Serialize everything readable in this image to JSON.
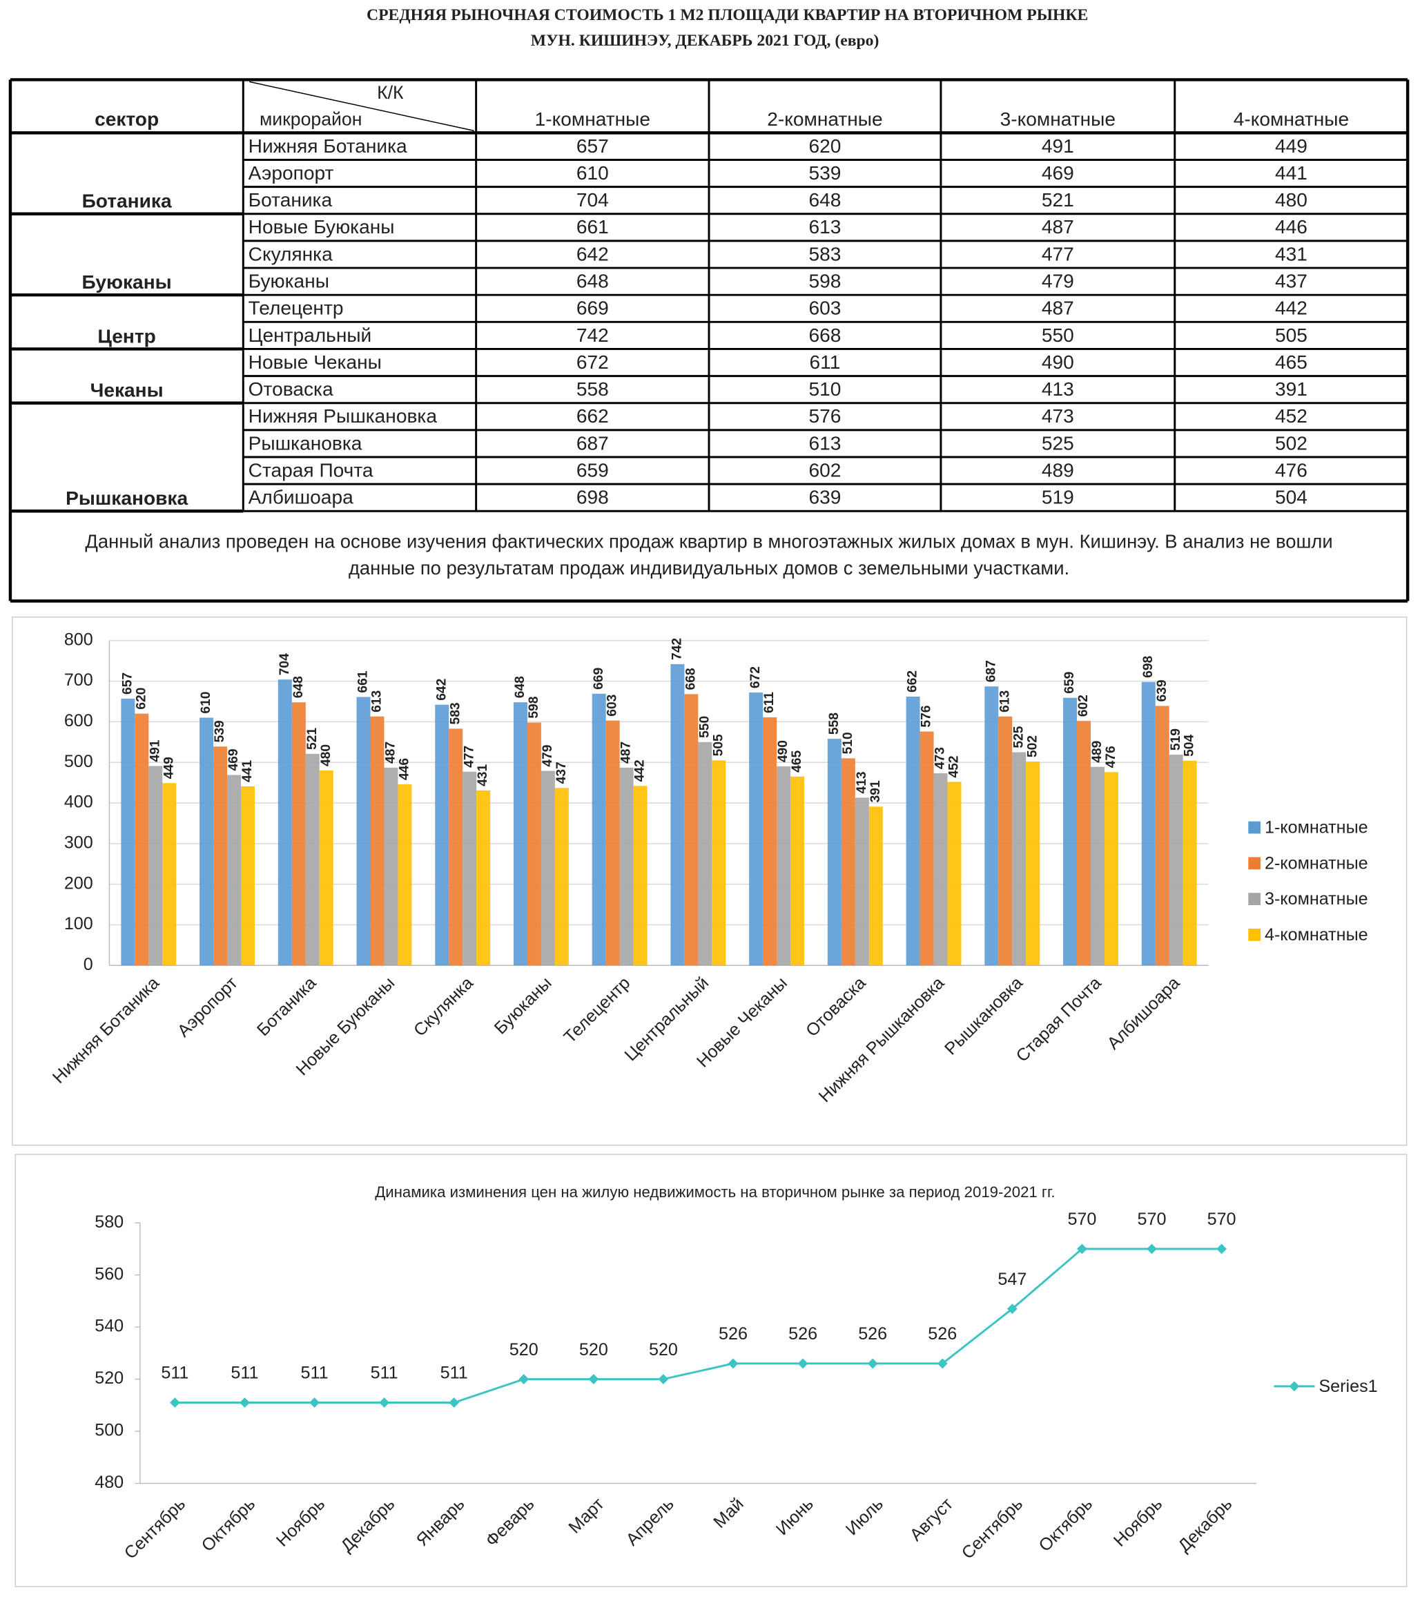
{
  "header": {
    "title_lines": [
      "СРЕДНЯЯ  РЫНОЧНАЯ  СТОИМОСТЬ  1 М2  ПЛОЩАДИ  КВАРТИР НА ВТОРИЧНОМ РЫНКЕ",
      "МУН.  КИШИНЭУ, ДЕКАБРЬ 2021 ГОД, (евро)"
    ]
  },
  "table": {
    "header": [
      "сектор",
      "К/К",
      "микрорайон",
      "1-комнатные",
      "2-комнатные",
      "3-комнатные",
      "4-комнатные"
    ],
    "rows": [
      [
        null,
        "Нижняя Ботаника",
        "657",
        "620",
        "491",
        "449"
      ],
      [
        null,
        "Аэропорт",
        "610",
        "539",
        "469",
        "441"
      ],
      [
        "Ботаника",
        "Ботаника",
        "704",
        "648",
        "521",
        "480"
      ],
      [
        null,
        "Новые Буюканы",
        "661",
        "613",
        "487",
        "446"
      ],
      [
        null,
        "Скулянка",
        "642",
        "583",
        "477",
        "431"
      ],
      [
        "Буюканы",
        "Буюканы",
        "648",
        "598",
        "479",
        "437"
      ],
      [
        null,
        "Телецентр",
        "669",
        "603",
        "487",
        "442"
      ],
      [
        "Центр",
        "Центральный",
        "742",
        "668",
        "550",
        "505"
      ],
      [
        null,
        "Новые Чеканы",
        "672",
        "611",
        "490",
        "465"
      ],
      [
        "Чеканы",
        "Отоваска",
        "558",
        "510",
        "413",
        "391"
      ],
      [
        null,
        "Нижняя Рышкановка",
        "662",
        "576",
        "473",
        "452"
      ],
      [
        null,
        "Рышкановка",
        "687",
        "613",
        "525",
        "502"
      ],
      [
        null,
        "Старая Почта",
        "659",
        "602",
        "489",
        "476"
      ],
      [
        "Рышкановка",
        "Албишоара",
        "698",
        "639",
        "519",
        "504"
      ]
    ],
    "note": [
      "Данный анализ проведен на основе изучения фактических продаж квартир в многоэтажных жилых домах в мун. Кишинэу. В анализ не вошли",
      "данные по результатам  продаж индивидуальных домов с земельными участками."
    ]
  },
  "chart_data": [
    {
      "type": "bar",
      "categories": [
        "Нижняя Ботаника",
        "Аэропорт",
        "Ботаника",
        "Новые Буюканы",
        "Скулянка",
        "Буюканы",
        "Телецентр",
        "Центральный",
        "Новые Чеканы",
        "Отоваска",
        "Нижняя Рышкановка",
        "Рышкановка",
        "Старая Почта",
        "Албишоара"
      ],
      "series": [
        {
          "name": "1-комнатные",
          "color": "#5b9bd5",
          "values": [
            657,
            610,
            704,
            661,
            642,
            648,
            669,
            742,
            672,
            558,
            662,
            687,
            659,
            698
          ]
        },
        {
          "name": "2-комнатные",
          "color": "#ed7d31",
          "values": [
            620,
            539,
            648,
            613,
            583,
            598,
            603,
            668,
            611,
            510,
            576,
            613,
            602,
            639
          ]
        },
        {
          "name": "3-комнатные",
          "color": "#a5a5a5",
          "values": [
            491,
            469,
            521,
            487,
            477,
            479,
            487,
            550,
            490,
            413,
            473,
            525,
            489,
            519
          ]
        },
        {
          "name": "4-комнатные",
          "color": "#ffc000",
          "values": [
            449,
            441,
            480,
            446,
            431,
            437,
            442,
            505,
            465,
            391,
            452,
            502,
            476,
            504
          ]
        }
      ],
      "ylim": [
        0,
        800
      ],
      "yticks": [
        0,
        100,
        200,
        300,
        400,
        500,
        600,
        700,
        800
      ],
      "grid": true,
      "legend": "right",
      "data_labels": true
    },
    {
      "type": "line",
      "title": "Динамика изминения цен на жилую недвижимость на вторичном рынке за период 2019-2021 гг.",
      "categories": [
        "Сентябрь",
        "Октябрь",
        "Ноябрь",
        "Декабрь",
        "Январь",
        "Феварь",
        "Март",
        "Апрель",
        "Май",
        "Июнь",
        "Июль",
        "Август",
        "Сентябрь",
        "Октябрь",
        "Ноябрь",
        "Декабрь"
      ],
      "series": [
        {
          "name": "Series1",
          "color": "#3cc4c4",
          "values": [
            511,
            511,
            511,
            511,
            511,
            520,
            520,
            520,
            526,
            526,
            526,
            526,
            547,
            570,
            570,
            570
          ]
        }
      ],
      "ylim": [
        480,
        580
      ],
      "yticks": [
        480,
        500,
        520,
        540,
        560,
        580
      ],
      "grid": false,
      "legend": "right",
      "data_labels": true
    }
  ]
}
